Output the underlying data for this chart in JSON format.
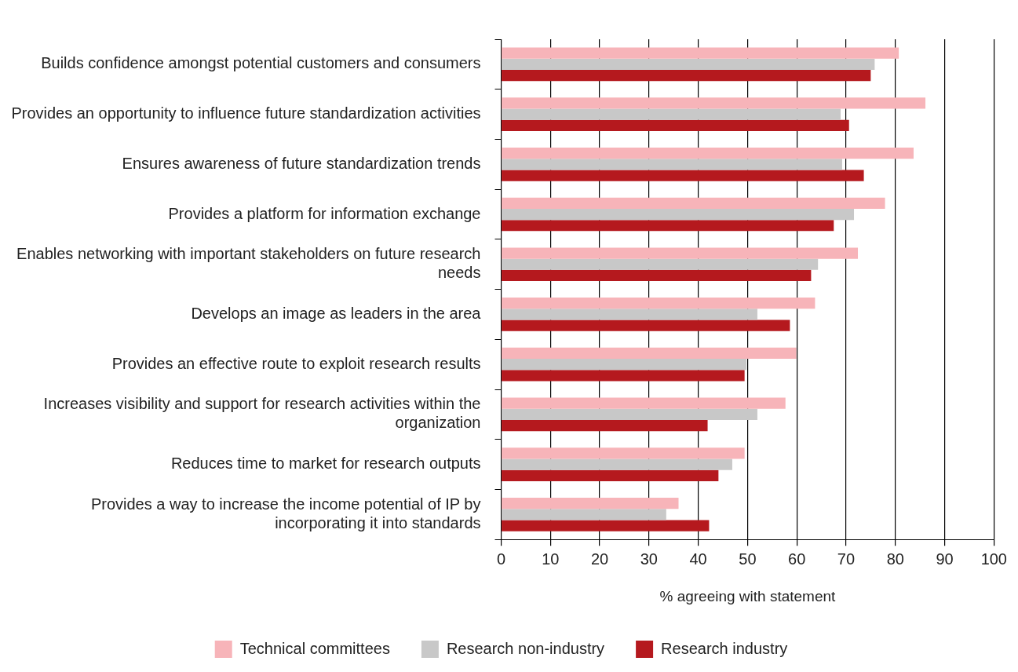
{
  "chart_data": {
    "type": "bar",
    "orientation": "horizontal",
    "xlabel": "% agreeing with statement",
    "categories": [
      "Builds confidence amongst potential customers and consumers",
      "Provides an opportunity to influence future standardization activities",
      "Ensures awareness of future standardization trends",
      "Provides a platform for information exchange",
      "Enables networking with important stakeholders on future research needs",
      "Develops an image as leaders in the area",
      "Provides an effective route to exploit research results",
      "Increases visibility and support for research activities within the organization",
      "Reduces time to market for research outputs",
      "Provides a way to increase the income potential of IP by incorporating it into standards"
    ],
    "series": [
      {
        "name": "Technical committees",
        "color": "#f7b4b9",
        "values": [
          80.7,
          86.1,
          83.7,
          77.9,
          72.4,
          63.7,
          59.9,
          57.7,
          49.4,
          36.0
        ]
      },
      {
        "name": "Research non-industry",
        "color": "#c8c8c8",
        "values": [
          75.8,
          68.9,
          69.2,
          71.6,
          64.3,
          52.0,
          49.8,
          52.0,
          46.9,
          33.5
        ]
      },
      {
        "name": "Research industry",
        "color": "#b5191e",
        "values": [
          75.0,
          70.6,
          73.6,
          67.5,
          62.9,
          58.6,
          49.4,
          41.9,
          44.1,
          42.2
        ]
      }
    ],
    "xlim": [
      0,
      100
    ],
    "xticks": [
      0,
      10,
      20,
      30,
      40,
      50,
      60,
      70,
      80,
      90,
      100
    ],
    "grid": "x",
    "legend": "bottom"
  }
}
